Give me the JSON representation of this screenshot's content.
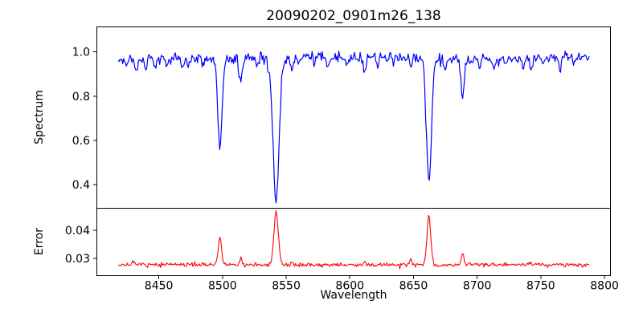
{
  "chart_data": {
    "type": "line",
    "title": "20090202_0901m26_138",
    "xlabel": "Wavelength",
    "background": "#ffffff",
    "axis_color": "#000000",
    "grid": false,
    "legend": "none",
    "xlim": [
      8401,
      8805
    ],
    "xticks": [
      8450,
      8500,
      8550,
      8600,
      8650,
      8700,
      8750,
      8800
    ],
    "xtick_labels": [
      "8450",
      "8500",
      "8550",
      "8600",
      "8650",
      "8700",
      "8750",
      "8800"
    ],
    "lines_format": [
      "center_wavelength",
      "depth_or_height",
      "sigma"
    ],
    "panels": [
      {
        "name": "spectrum-panel",
        "ylabel": "Spectrum",
        "ylim": [
          0.295,
          1.115
        ],
        "yticks": [
          0.4,
          0.6,
          0.8,
          1.0
        ],
        "ytick_labels": [
          "0.4",
          "0.6",
          "0.8",
          "1.0"
        ],
        "series": {
          "name": "spectrum",
          "color": "#0000ff",
          "line_width": 1.2,
          "x_start": 8418,
          "x_end": 8788,
          "n_points": 511,
          "continuum": 0.973,
          "wobble": {
            "amp": 0.005,
            "period": 230,
            "phase": 3.6
          },
          "noise_sigma": 0.012,
          "noise_seed": 90202,
          "absorption_lines": [
            [
              8498.0,
              0.415,
              1.7
            ],
            [
              8542.1,
              0.645,
              2.4
            ],
            [
              8662.1,
              0.555,
              2.0
            ],
            [
              8514.2,
              0.115,
              1.2
            ],
            [
              8688.6,
              0.185,
              1.2
            ],
            [
              8424.0,
              0.03,
              0.9
            ],
            [
              8432.5,
              0.06,
              1.0
            ],
            [
              8440.0,
              0.035,
              0.9
            ],
            [
              8447.0,
              0.03,
              0.8
            ],
            [
              8456.0,
              0.025,
              0.9
            ],
            [
              8468.4,
              0.05,
              1.0
            ],
            [
              8473.0,
              0.04,
              0.9
            ],
            [
              8484.0,
              0.03,
              0.8
            ],
            [
              8527.0,
              0.035,
              0.9
            ],
            [
              8536.0,
              0.03,
              0.8
            ],
            [
              8554.5,
              0.065,
              1.0
            ],
            [
              8560.0,
              0.03,
              0.8
            ],
            [
              8572.0,
              0.03,
              0.8
            ],
            [
              8583.0,
              0.045,
              0.9
            ],
            [
              8598.0,
              0.035,
              0.9
            ],
            [
              8611.5,
              0.075,
              1.1
            ],
            [
              8622.0,
              0.04,
              0.9
            ],
            [
              8634.0,
              0.03,
              0.8
            ],
            [
              8648.0,
              0.035,
              0.8
            ],
            [
              8674.5,
              0.05,
              0.9
            ],
            [
              8702.0,
              0.04,
              0.9
            ],
            [
              8713.0,
              0.055,
              1.0
            ],
            [
              8722.0,
              0.03,
              0.8
            ],
            [
              8736.0,
              0.045,
              0.9
            ],
            [
              8742.5,
              0.06,
              1.0
            ],
            [
              8752.0,
              0.03,
              0.8
            ],
            [
              8765.0,
              0.055,
              1.0
            ],
            [
              8776.0,
              0.035,
              0.9
            ]
          ]
        }
      },
      {
        "name": "error-panel",
        "ylabel": "Error",
        "ylim": [
          0.024,
          0.048
        ],
        "yticks": [
          0.03,
          0.04
        ],
        "ytick_labels": [
          "0.03",
          "0.04"
        ],
        "series": {
          "name": "error",
          "color": "#ff0000",
          "line_width": 1.1,
          "x_start": 8418,
          "x_end": 8788,
          "n_points": 511,
          "baseline": 0.02775,
          "noise_sigma": 0.00036,
          "noise_seed": 901,
          "peaks": [
            [
              8498.0,
              0.0097,
              1.3
            ],
            [
              8542.1,
              0.0191,
              1.7
            ],
            [
              8662.1,
              0.017,
              1.5
            ],
            [
              8688.6,
              0.0042,
              0.9
            ],
            [
              8514.2,
              0.0024,
              0.9
            ],
            [
              8430.0,
              0.0014,
              0.8
            ],
            [
              8611.5,
              0.001,
              0.8
            ],
            [
              8648.0,
              0.0026,
              0.6
            ],
            [
              8554.5,
              0.0008,
              0.7
            ],
            [
              8742.5,
              0.0008,
              0.8
            ]
          ]
        }
      }
    ]
  }
}
